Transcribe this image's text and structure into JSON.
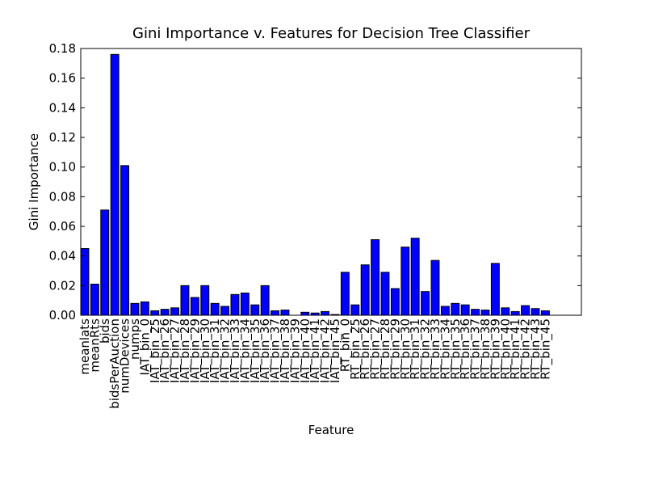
{
  "chart_data": {
    "type": "bar",
    "title": "Gini Importance v. Features for Decision Tree Classifier",
    "xlabel": "Feature",
    "ylabel": "Gini Importance",
    "categories": [
      "meanlats",
      "meanRts",
      "bids",
      "bidsPerAuction",
      "numDevices",
      "numps",
      "IAT_bin_0",
      "IAT_bin_25",
      "IAT_bin_26",
      "IAT_bin_27",
      "IAT_bin_28",
      "IAT_bin_29",
      "IAT_bin_30",
      "IAT_bin_31",
      "IAT_bin_32",
      "IAT_bin_33",
      "IAT_bin_34",
      "IAT_bin_35",
      "IAT_bin_36",
      "IAT_bin_37",
      "IAT_bin_38",
      "IAT_bin_39",
      "IAT_bin_40",
      "IAT_bin_41",
      "IAT_bin_42",
      "IAT_bin_45",
      "RT_bin_0",
      "RT_bin_25",
      "RT_bin_26",
      "RT_bin_27",
      "RT_bin_28",
      "RT_bin_29",
      "RT_bin_30",
      "RT_bin_31",
      "RT_bin_32",
      "RT_bin_33",
      "RT_bin_34",
      "RT_bin_35",
      "RT_bin_36",
      "RT_bin_37",
      "RT_bin_38",
      "RT_bin_39",
      "RT_bin_40",
      "RT_bin_41",
      "RT_bin_42",
      "RT_bin_43",
      "RT_bin_45"
    ],
    "values": [
      0.045,
      0.021,
      0.071,
      0.176,
      0.101,
      0.008,
      0.009,
      0.003,
      0.004,
      0.005,
      0.02,
      0.012,
      0.02,
      0.008,
      0.006,
      0.014,
      0.015,
      0.007,
      0.02,
      0.003,
      0.0035,
      0.0,
      0.002,
      0.0015,
      0.0025,
      0.0005,
      0.029,
      0.007,
      0.034,
      0.051,
      0.029,
      0.018,
      0.046,
      0.052,
      0.016,
      0.037,
      0.006,
      0.008,
      0.007,
      0.004,
      0.0035,
      0.035,
      0.005,
      0.0025,
      0.0065,
      0.0045,
      0.003
    ],
    "color": "#0000ff",
    "ylim": [
      0,
      0.18
    ],
    "yticks": [
      {
        "value": 0,
        "label": "0.00"
      },
      0.02,
      0.04,
      0.06,
      0.08,
      {
        "value": 0.1,
        "label": "0.10"
      },
      0.12,
      0.14,
      0.16,
      0.18
    ]
  }
}
